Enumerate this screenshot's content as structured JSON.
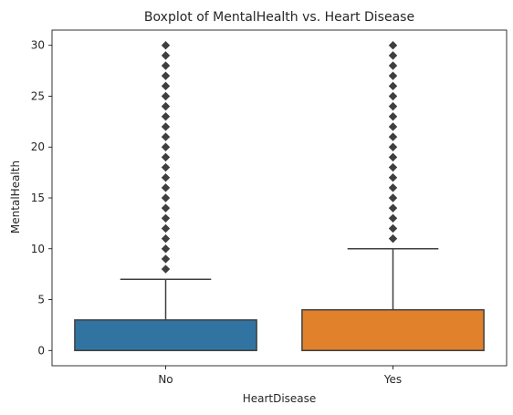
{
  "chart_data": {
    "type": "boxplot",
    "title": "Boxplot of MentalHealth vs. Heart Disease",
    "xlabel": "HeartDisease",
    "ylabel": "MentalHealth",
    "categories": [
      "No",
      "Yes"
    ],
    "ylim": [
      -1.5,
      31.5
    ],
    "yticks": [
      0,
      5,
      10,
      15,
      20,
      25,
      30
    ],
    "grid": false,
    "boxes": [
      {
        "category": "No",
        "min": 0,
        "q1": 0,
        "median": 0,
        "q3": 3,
        "whisker_high": 7,
        "outliers": [
          8,
          9,
          10,
          11,
          12,
          13,
          14,
          15,
          16,
          17,
          18,
          19,
          20,
          21,
          22,
          23,
          24,
          25,
          26,
          27,
          28,
          29,
          30
        ],
        "color": "#3274a1"
      },
      {
        "category": "Yes",
        "min": 0,
        "q1": 0,
        "median": 0,
        "q3": 4,
        "whisker_high": 10,
        "outliers": [
          11,
          12,
          13,
          14,
          15,
          16,
          17,
          18,
          19,
          20,
          21,
          22,
          23,
          24,
          25,
          26,
          27,
          28,
          29,
          30
        ],
        "color": "#e1812c"
      }
    ],
    "line_color": "#3f3f3f"
  }
}
